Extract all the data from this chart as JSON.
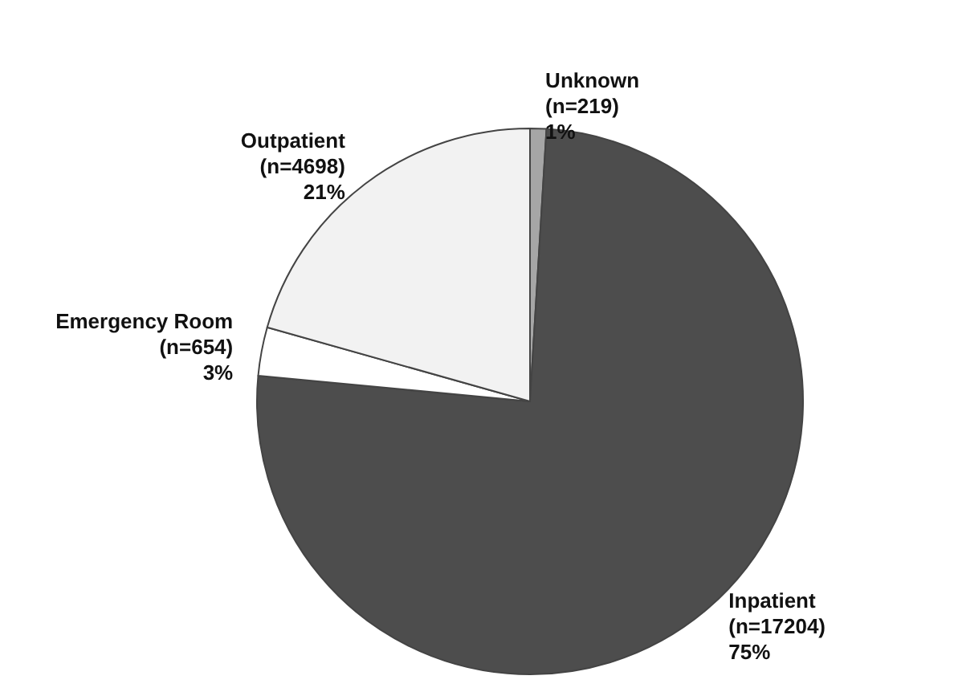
{
  "chart_data": {
    "type": "pie",
    "categories": [
      "Unknown",
      "Inpatient",
      "Emergency Room",
      "Outpatient"
    ],
    "values": [
      219,
      17204,
      654,
      4698
    ],
    "value_labels": [
      "(n=219)\n1%",
      "(n=17204)\n75%",
      "(n=654)\n3%",
      "(n=4698)\n21%"
    ],
    "colors": [
      "#a6a6a6",
      "#4d4d4d",
      "#ffffff",
      "#f2f2f2"
    ],
    "legend": false
  }
}
